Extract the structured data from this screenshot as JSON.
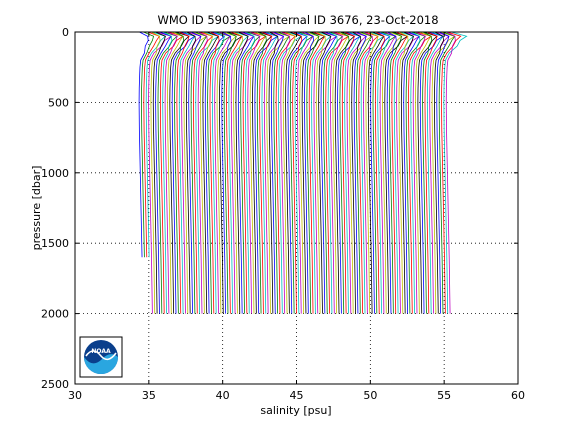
{
  "chart_data": {
    "type": "line",
    "title": "WMO ID 5903363, internal ID 3676, 23-Oct-2018",
    "xlabel": "salinity [psu]",
    "ylabel": "pressure [dbar]",
    "xlim": [
      30,
      60
    ],
    "ylim": [
      0,
      2500
    ],
    "y_reversed": true,
    "grid": "dotted",
    "x_ticks": [
      30,
      35,
      40,
      45,
      50,
      55,
      60
    ],
    "y_ticks": [
      0,
      500,
      1000,
      1500,
      2000,
      2500
    ],
    "profile_colors": [
      "#0000ff",
      "#008000",
      "#ff0000",
      "#00bfbf",
      "#bf00bf",
      "#bfbf00",
      "#000000"
    ],
    "pressure_levels": [
      0,
      30,
      60,
      100,
      150,
      200,
      250,
      300,
      400,
      500,
      700,
      1000,
      1300,
      1600,
      1800,
      2000
    ],
    "profile_count": 131,
    "profile_offset_psu": 0.16,
    "base_profile_salinity": [
      34.6,
      35.4,
      35.2,
      35.0,
      34.7,
      34.45,
      34.4,
      34.38,
      34.35,
      34.34,
      34.36,
      34.42,
      34.48,
      34.54,
      34.57,
      34.6
    ],
    "first_bottom_pressure": 1740,
    "series": [],
    "logo": {
      "text": "NOAA"
    }
  }
}
